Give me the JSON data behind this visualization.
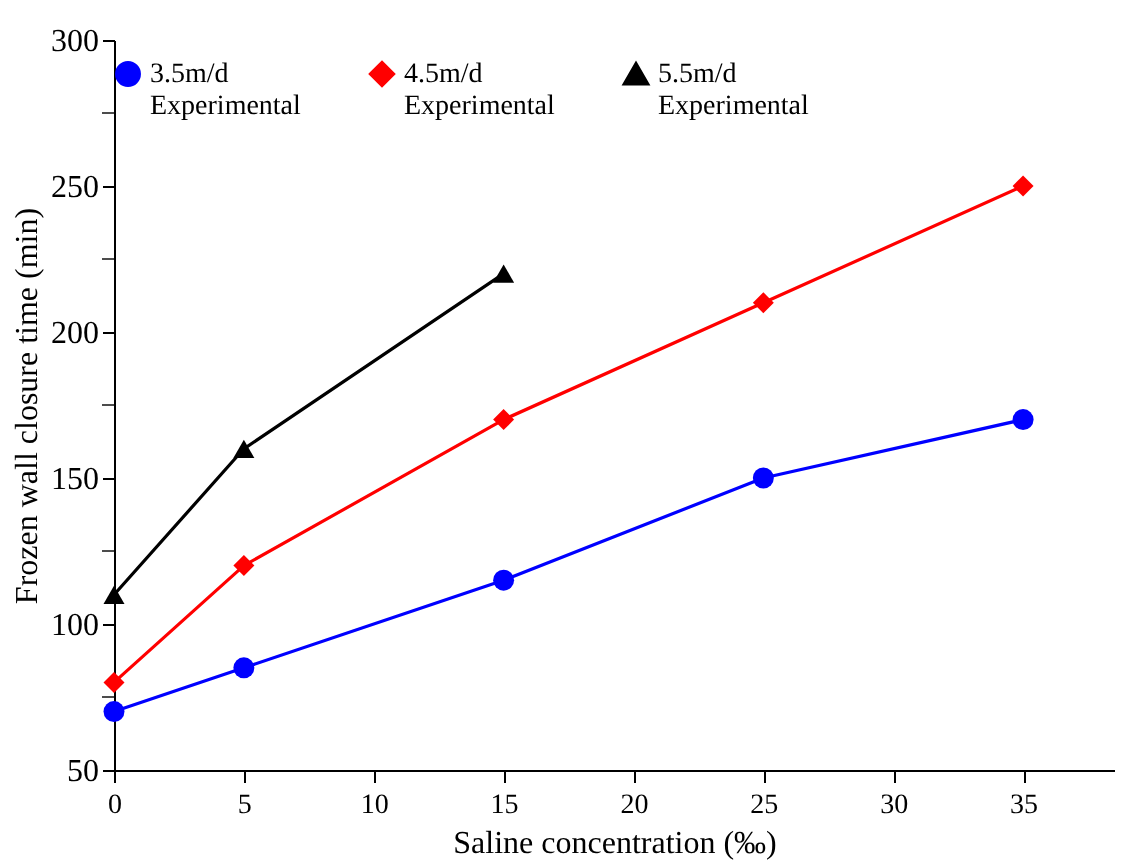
{
  "chart_data": {
    "type": "line",
    "xlabel": "Saline concentration (‰)",
    "ylabel": "Frozen wall  closure time (min)",
    "x": [
      0,
      5,
      15,
      25,
      35
    ],
    "series": [
      {
        "name": "3.5m/d\nExperimental",
        "color": "#0000ff",
        "marker": "circle",
        "values": [
          70,
          85,
          115,
          150,
          170
        ]
      },
      {
        "name": "4.5m/d\nExperimental",
        "color": "#ff0000",
        "marker": "diamond",
        "values": [
          80,
          120,
          170,
          210,
          250
        ]
      },
      {
        "name": "5.5m/d\nExperimental",
        "color": "#000000",
        "marker": "triangle",
        "x": [
          0,
          5,
          15
        ],
        "values": [
          110,
          160,
          220
        ]
      }
    ],
    "xlim": [
      0,
      38.5
    ],
    "xticks": [
      0,
      5,
      10,
      15,
      20,
      25,
      30,
      35
    ],
    "ylim": [
      50,
      300
    ],
    "yticks": [
      50,
      {
        "value": 75,
        "label": null
      },
      100,
      {
        "value": 125,
        "label": null
      },
      150,
      {
        "value": 175,
        "label": null
      },
      200,
      {
        "value": 225,
        "label": null
      },
      250,
      {
        "value": 275,
        "label": null
      },
      300
    ],
    "grid": false,
    "legend": "top"
  }
}
